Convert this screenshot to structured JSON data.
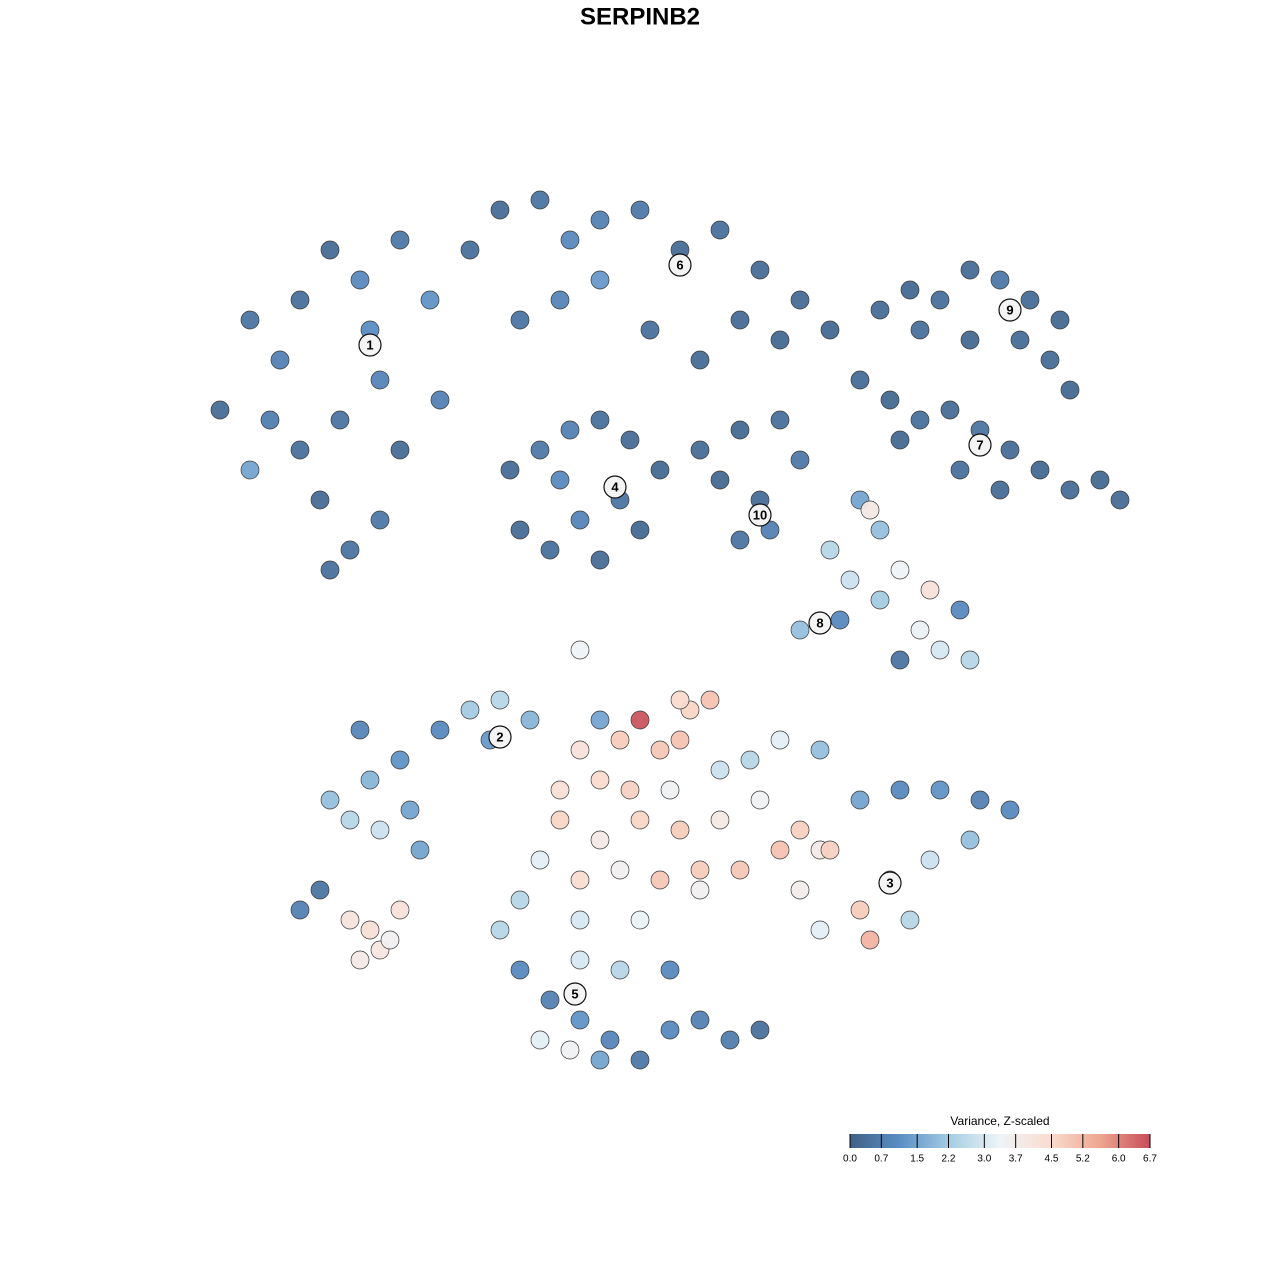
{
  "chart_data": {
    "type": "scatter",
    "title": "SERPINB2",
    "x": [
      22,
      25,
      28,
      30,
      33,
      36,
      40,
      43,
      38,
      34,
      30,
      27,
      32,
      35,
      38,
      33,
      40,
      44,
      25,
      37,
      47,
      50,
      54,
      57,
      60,
      64,
      68,
      72,
      76,
      80,
      83,
      56,
      60,
      52,
      65,
      70,
      74,
      78,
      51,
      54,
      57,
      60,
      63,
      66,
      62,
      58,
      55,
      52,
      60,
      64,
      56,
      70,
      74,
      78,
      80,
      76,
      74,
      77,
      72,
      88,
      91,
      94,
      97,
      100,
      103,
      106,
      102,
      97,
      92,
      105,
      107,
      86,
      89,
      92,
      95,
      98,
      101,
      104,
      107,
      110,
      112,
      96,
      100,
      90,
      83,
      86,
      88,
      85,
      88,
      90,
      93,
      96,
      94,
      97,
      90,
      92,
      87,
      80,
      84,
      33,
      35,
      38,
      41,
      37,
      40,
      44,
      47,
      50,
      49,
      42,
      36,
      53,
      58,
      62,
      64,
      66,
      68,
      69,
      60,
      63,
      67,
      72,
      75,
      78,
      82,
      56,
      60,
      64,
      68,
      72,
      76,
      80,
      54,
      58,
      62,
      66,
      70,
      74,
      78,
      82,
      52,
      58,
      64,
      70,
      68,
      71,
      60,
      56,
      86,
      90,
      94,
      98,
      101,
      97,
      93,
      89,
      86,
      82,
      87,
      91,
      80,
      83,
      50,
      52,
      55,
      58,
      61,
      64,
      67,
      70,
      73,
      76,
      62,
      58,
      54,
      67,
      60,
      57,
      30,
      32,
      35,
      37,
      36,
      38,
      40,
      39,
      58
    ],
    "y": [
      41,
      32,
      36,
      30,
      25,
      28,
      24,
      30,
      38,
      42,
      45,
      42,
      50,
      55,
      52,
      57,
      45,
      40,
      47,
      33,
      25,
      21,
      20,
      24,
      22,
      21,
      25,
      23,
      27,
      30,
      33,
      30,
      28,
      32,
      33,
      36,
      32,
      34,
      47,
      45,
      43,
      42,
      44,
      47,
      50,
      52,
      55,
      53,
      56,
      53,
      48,
      45,
      43,
      42,
      46,
      50,
      54,
      53,
      48,
      31,
      29,
      30,
      27,
      28,
      30,
      32,
      34,
      34,
      33,
      36,
      39,
      38,
      40,
      42,
      41,
      43,
      45,
      47,
      49,
      48,
      50,
      47,
      49,
      44,
      55,
      50,
      53,
      58,
      60,
      57,
      59,
      61,
      65,
      66,
      66,
      63,
      51,
      63,
      62,
      80,
      82,
      83,
      81,
      78,
      76,
      73,
      71,
      70,
      74,
      85,
      73,
      72,
      75,
      74,
      72,
      75,
      74,
      71,
      78,
      79,
      79,
      77,
      76,
      74,
      75,
      82,
      84,
      82,
      83,
      82,
      80,
      83,
      86,
      88,
      87,
      88,
      87,
      87,
      85,
      85,
      90,
      92,
      92,
      89,
      70,
      70,
      72,
      79,
      80,
      79,
      79,
      80,
      81,
      84,
      86,
      88,
      91,
      93,
      94,
      92,
      89,
      85,
      93,
      97,
      100,
      102,
      104,
      106,
      103,
      102,
      104,
      103,
      97,
      96,
      104,
      97,
      106,
      105,
      91,
      89,
      92,
      93,
      96,
      95,
      91,
      94,
      65
    ],
    "values": [
      0.3,
      0.5,
      0.8,
      0.4,
      0.3,
      1.0,
      0.6,
      1.2,
      0.9,
      0.5,
      0.4,
      0.7,
      0.3,
      0.5,
      0.6,
      0.4,
      0.3,
      0.8,
      1.5,
      1.1,
      0.4,
      0.3,
      0.5,
      1.0,
      0.8,
      0.6,
      0.3,
      0.4,
      0.3,
      0.3,
      0.2,
      0.9,
      1.3,
      0.5,
      0.4,
      0.3,
      0.3,
      0.2,
      0.3,
      0.6,
      0.8,
      0.4,
      0.3,
      0.2,
      0.5,
      0.9,
      0.4,
      0.3,
      0.3,
      0.2,
      1.0,
      0.3,
      0.2,
      0.4,
      0.6,
      0.3,
      0.5,
      0.8,
      0.2,
      0.3,
      0.2,
      0.4,
      0.3,
      0.6,
      0.3,
      0.2,
      0.3,
      0.2,
      0.4,
      0.3,
      0.2,
      0.3,
      0.2,
      0.4,
      0.3,
      0.5,
      0.3,
      0.2,
      0.3,
      0.2,
      0.3,
      0.4,
      0.3,
      0.2,
      2.5,
      1.5,
      2.0,
      2.8,
      2.2,
      3.4,
      4.2,
      1.0,
      3.0,
      2.5,
      0.5,
      3.3,
      3.9,
      2.0,
      1.0,
      2.0,
      2.5,
      2.8,
      1.5,
      1.8,
      1.2,
      1.0,
      2.2,
      2.5,
      1.3,
      1.5,
      0.9,
      1.8,
      4.2,
      4.8,
      6.6,
      4.9,
      5.0,
      4.6,
      4.5,
      4.7,
      3.5,
      2.8,
      2.5,
      3.2,
      2.0,
      4.6,
      3.8,
      4.6,
      4.8,
      3.9,
      3.5,
      4.7,
      3.2,
      4.4,
      3.6,
      4.9,
      4.8,
      4.9,
      5.0,
      3.8,
      2.5,
      3.0,
      3.3,
      3.6,
      4.5,
      5.0,
      1.5,
      4.3,
      1.5,
      1.0,
      1.2,
      0.8,
      1.0,
      2.0,
      2.8,
      3.5,
      4.8,
      3.2,
      5.3,
      2.5,
      3.7,
      4.7,
      2.5,
      1.0,
      0.8,
      1.2,
      0.9,
      0.6,
      1.0,
      0.8,
      0.7,
      0.4,
      2.5,
      3.0,
      3.2,
      1.0,
      1.5,
      3.5,
      0.8,
      0.5,
      4.1,
      4.3,
      3.8,
      4.0,
      4.2,
      3.6,
      3.4
    ],
    "xlim": [
      18,
      115
    ],
    "ylim": [
      111,
      18
    ],
    "cluster_labels": [
      {
        "label": "1",
        "x": 37,
        "y": 34.5
      },
      {
        "label": "2",
        "x": 50,
        "y": 73.7
      },
      {
        "label": "3",
        "x": 89,
        "y": 88.3
      },
      {
        "label": "4",
        "x": 61.5,
        "y": 48.7
      },
      {
        "label": "5",
        "x": 57.5,
        "y": 99.4
      },
      {
        "label": "6",
        "x": 68,
        "y": 26.5
      },
      {
        "label": "7",
        "x": 98,
        "y": 44.5
      },
      {
        "label": "8",
        "x": 82,
        "y": 62.3
      },
      {
        "label": "9",
        "x": 101,
        "y": 31
      },
      {
        "label": "10",
        "x": 76,
        "y": 51.5
      }
    ],
    "colorbar": {
      "title": "Variance, Z-scaled",
      "clim": [
        0,
        6.7
      ],
      "colors": [
        "#3f6187",
        "#5b8ec4",
        "#a6cde3",
        "#eef4f8",
        "#fadccf",
        "#eea690",
        "#c74c5a"
      ],
      "ticks": [
        {
          "value": 0,
          "label": "0.0"
        },
        0.7,
        1.5,
        2.2,
        {
          "value": 3,
          "label": "3.0"
        },
        3.7,
        4.5,
        5.2,
        {
          "value": 6,
          "label": "6.0"
        },
        6.7
      ]
    }
  }
}
